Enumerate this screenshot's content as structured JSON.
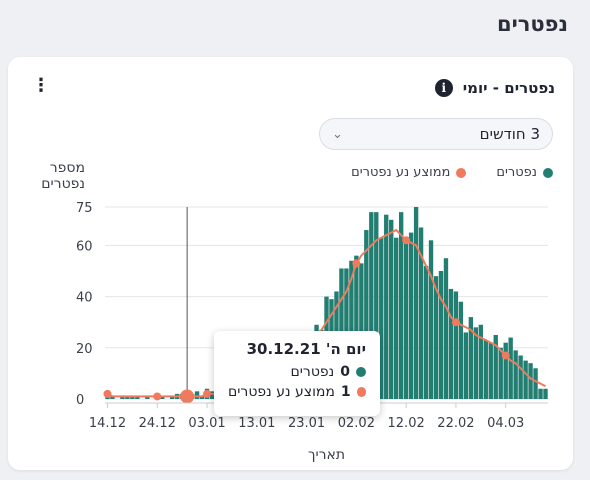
{
  "page": {
    "title": "נפטרים"
  },
  "card": {
    "title": "נפטרים - יומי",
    "info_icon": "info-icon",
    "menu_icon": "kebab-menu-icon",
    "range": {
      "selected": "3 חודשים"
    }
  },
  "colors": {
    "bars": "#237e72",
    "line": "#f07a5d",
    "grid": "#e3e5e9"
  },
  "tooltip": {
    "date": "יום ה' 30.12.21",
    "rows": [
      {
        "value": "0",
        "label": "נפטרים"
      },
      {
        "value": "1",
        "label": "ממוצע נע נפטרים"
      }
    ]
  },
  "chart_data": {
    "type": "bar",
    "ylabel": "מספר נפטרים",
    "xlabel": "תאריך",
    "ylim": [
      0,
      75
    ],
    "yticks": [
      0,
      20,
      40,
      60,
      75
    ],
    "xtick_labels": [
      "14.12",
      "24.12",
      "03.01",
      "13.01",
      "23.01",
      "02.02",
      "12.02",
      "22.02",
      "04.03"
    ],
    "legend": {
      "placement": "top-right",
      "entries": [
        "נפטרים",
        "ממוצע נע נפטרים"
      ]
    },
    "grid": true,
    "series": [
      {
        "name": "נפטרים",
        "type": "bar",
        "values": [
          1,
          1,
          0,
          1,
          1,
          1,
          1,
          0,
          1,
          0,
          1,
          1,
          0,
          1,
          2,
          2,
          0,
          2,
          3,
          1,
          4,
          3,
          3,
          2,
          3,
          5,
          4,
          4,
          6,
          7,
          9,
          8,
          10,
          9,
          14,
          13,
          13,
          18,
          20,
          17,
          22,
          26,
          29,
          27,
          40,
          39,
          42,
          51,
          51,
          54,
          56,
          53,
          66,
          73,
          73,
          63,
          72,
          70,
          63,
          73,
          62,
          65,
          75,
          67,
          52,
          62,
          48,
          50,
          55,
          43,
          42,
          38,
          26,
          32,
          28,
          29,
          23,
          22,
          25,
          20,
          22,
          24,
          19,
          17,
          15,
          14,
          12,
          4,
          4
        ]
      },
      {
        "name": "ממוצע נע נפטרים",
        "type": "line",
        "values": [
          2,
          1,
          1,
          1,
          1,
          1,
          1,
          1,
          1,
          1,
          1,
          1,
          1,
          1,
          1,
          1,
          1,
          1,
          1,
          1,
          2,
          2,
          2,
          3,
          3,
          3,
          4,
          4,
          5,
          5,
          6,
          7,
          8,
          9,
          10,
          11,
          13,
          14,
          16,
          18,
          20,
          22,
          25,
          27,
          30,
          33,
          36,
          39,
          42,
          47,
          53,
          56,
          58,
          60,
          62,
          63,
          64,
          65,
          66,
          64,
          62,
          61,
          60,
          56,
          52,
          48,
          43,
          39,
          36,
          32,
          30,
          29,
          28,
          27,
          25,
          24,
          23,
          22,
          21,
          19,
          17,
          15,
          14,
          12,
          10,
          8,
          7,
          6,
          5
        ]
      }
    ]
  }
}
